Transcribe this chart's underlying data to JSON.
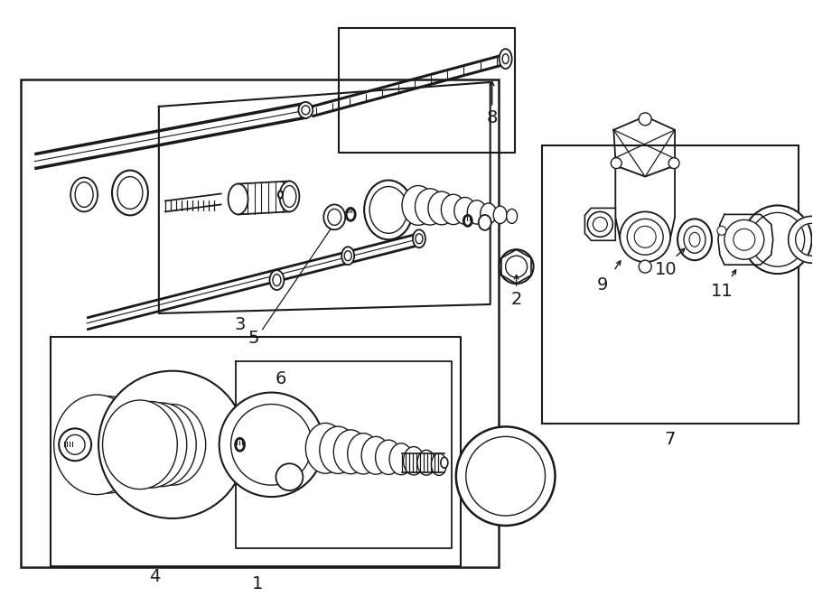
{
  "bg_color": "#ffffff",
  "line_color": "#1a1a1a",
  "fig_width": 9.0,
  "fig_height": 6.61,
  "font_size": 12,
  "font_size_large": 14
}
